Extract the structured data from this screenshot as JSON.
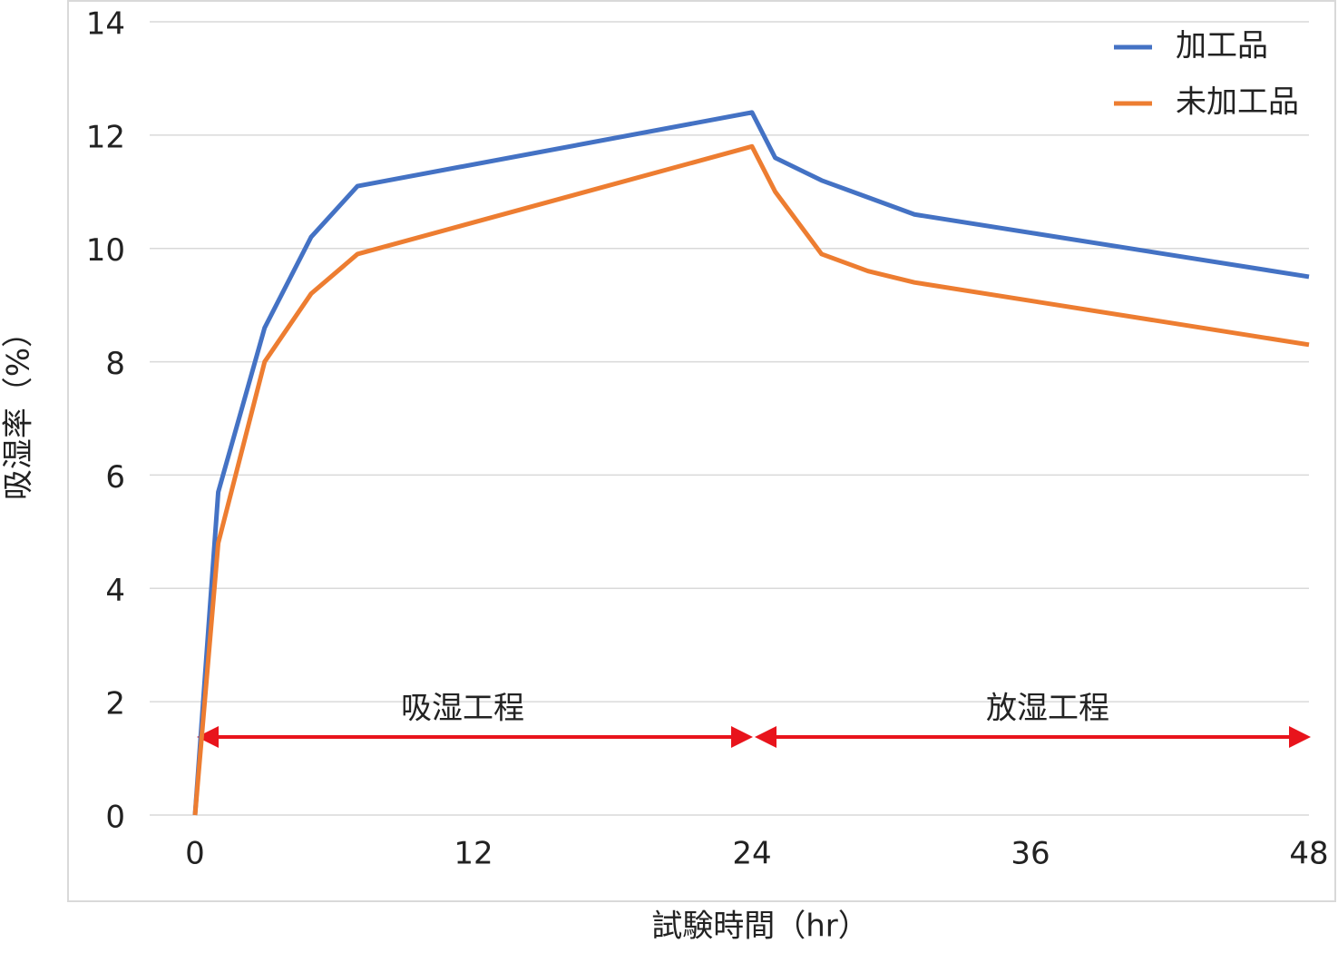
{
  "chart_data": {
    "type": "line",
    "x": [
      0,
      1,
      3,
      5,
      7,
      24,
      25,
      27,
      29,
      31,
      48
    ],
    "series": [
      {
        "name": "加工品",
        "color": "#4472c4",
        "values": [
          0,
          5.7,
          8.6,
          10.2,
          11.1,
          12.4,
          11.6,
          11.2,
          10.9,
          10.6,
          9.5
        ]
      },
      {
        "name": "未加工品",
        "color": "#ed7d31",
        "values": [
          0,
          4.8,
          8.0,
          9.2,
          9.9,
          11.8,
          11.0,
          9.9,
          9.6,
          9.4,
          8.3
        ]
      }
    ],
    "xlim": [
      0,
      48
    ],
    "xticks": [
      0,
      12,
      24,
      36,
      48
    ],
    "ylim": [
      0,
      14
    ],
    "yticks": [
      0,
      2,
      4,
      6,
      8,
      10,
      12,
      14
    ],
    "grid": true,
    "legend": "upper right",
    "x_label": "試験時間（hr）",
    "y_label": "吸湿率（%）",
    "annotations": [
      "吸湿工程",
      "放湿工程"
    ]
  }
}
